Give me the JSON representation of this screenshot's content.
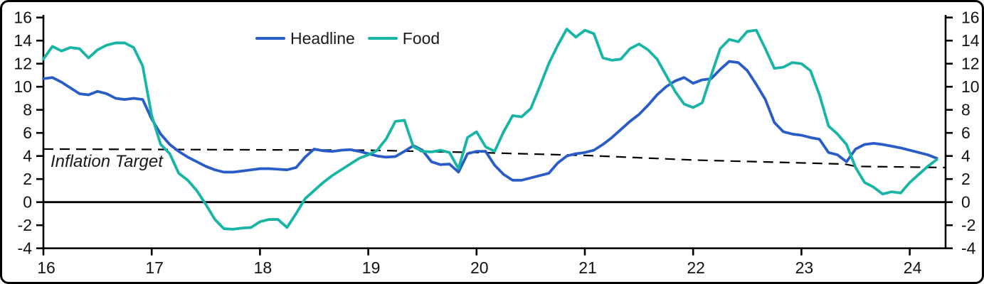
{
  "chart_data": {
    "type": "line",
    "title": "",
    "x_start_year_label": 16,
    "points_per_year": 12,
    "x_axis": {
      "ticks": [
        16,
        17,
        18,
        19,
        20,
        21,
        22,
        23,
        24
      ],
      "labels": [
        "16",
        "17",
        "18",
        "19",
        "20",
        "21",
        "22",
        "23",
        "24"
      ],
      "range": [
        16,
        24.33
      ]
    },
    "y_axis": {
      "ticks": [
        16,
        14,
        12,
        10,
        8,
        6,
        4,
        2,
        0,
        -2,
        -4
      ],
      "labels": [
        "16",
        "14",
        "12",
        "10",
        "8",
        "6",
        "4",
        "2",
        "0",
        "-2",
        "-4"
      ],
      "range": [
        -4,
        16
      ],
      "sides": "both"
    },
    "series": [
      {
        "name": "Headline",
        "color": "#2a5cc8",
        "values": [
          10.7,
          10.8,
          10.4,
          9.9,
          9.4,
          9.3,
          9.6,
          9.4,
          9.0,
          8.9,
          9.0,
          8.9,
          7.2,
          5.9,
          5.0,
          4.4,
          3.9,
          3.5,
          3.1,
          2.8,
          2.6,
          2.6,
          2.7,
          2.8,
          2.9,
          2.9,
          2.85,
          2.8,
          3.0,
          3.9,
          4.6,
          4.45,
          4.4,
          4.5,
          4.55,
          4.4,
          4.2,
          4.0,
          3.9,
          3.95,
          4.4,
          4.9,
          4.5,
          3.5,
          3.25,
          3.3,
          2.6,
          4.2,
          4.4,
          4.4,
          3.2,
          2.4,
          1.9,
          1.9,
          2.1,
          2.3,
          2.5,
          3.4,
          4.0,
          4.2,
          4.3,
          4.5,
          5.0,
          5.6,
          6.3,
          7.0,
          7.6,
          8.4,
          9.3,
          10.0,
          10.5,
          10.8,
          10.3,
          10.6,
          10.7,
          11.5,
          12.2,
          12.1,
          11.4,
          10.2,
          8.9,
          6.9,
          6.1,
          5.9,
          5.8,
          5.6,
          5.45,
          4.3,
          4.1,
          3.5,
          4.6,
          5.0,
          5.1,
          5.0,
          4.85,
          4.7,
          4.5,
          4.3,
          4.1,
          3.8
        ]
      },
      {
        "name": "Food",
        "color": "#17b5a6",
        "values": [
          12.4,
          13.5,
          13.1,
          13.4,
          13.3,
          12.5,
          13.2,
          13.6,
          13.8,
          13.8,
          13.4,
          11.8,
          7.5,
          5.0,
          4.2,
          2.5,
          1.9,
          1.0,
          -0.2,
          -1.5,
          -2.3,
          -2.35,
          -2.25,
          -2.2,
          -1.7,
          -1.5,
          -1.5,
          -2.2,
          -1.0,
          0.3,
          1.0,
          1.7,
          2.3,
          2.8,
          3.3,
          3.8,
          4.1,
          4.5,
          5.5,
          7.0,
          7.1,
          4.8,
          4.4,
          4.35,
          4.5,
          4.3,
          2.9,
          5.6,
          6.1,
          4.8,
          4.4,
          6.1,
          7.5,
          7.4,
          8.1,
          10.0,
          12.0,
          13.6,
          15.0,
          14.3,
          14.9,
          14.6,
          12.5,
          12.3,
          12.4,
          13.3,
          13.7,
          13.2,
          12.4,
          11.0,
          9.6,
          8.5,
          8.2,
          8.6,
          11.0,
          13.3,
          14.1,
          13.9,
          14.8,
          14.9,
          13.3,
          11.6,
          11.7,
          12.1,
          12.0,
          11.4,
          9.3,
          6.6,
          5.9,
          5.0,
          3.0,
          1.7,
          1.3,
          0.7,
          0.9,
          0.8,
          1.7,
          2.4,
          3.1,
          3.7
        ]
      }
    ],
    "target_line": {
      "label": "Inflation Target",
      "color": "#000000",
      "style": "dashed",
      "points": [
        [
          16,
          4.6
        ],
        [
          19,
          4.5
        ],
        [
          20,
          4.3
        ],
        [
          21,
          4.05
        ],
        [
          22,
          3.65
        ],
        [
          23,
          3.4
        ],
        [
          23.4,
          3.3
        ],
        [
          23.5,
          3.1
        ],
        [
          24.33,
          3.0
        ]
      ]
    },
    "zero_line": {
      "value": 0,
      "color": "#000000"
    },
    "legend": [
      {
        "label": "Headline",
        "color": "#2a5cc8"
      },
      {
        "label": "Food",
        "color": "#17b5a6"
      }
    ],
    "background": "#ffffff",
    "frame_color": "#000000",
    "grid": false,
    "legend_position": "top-center-left"
  }
}
